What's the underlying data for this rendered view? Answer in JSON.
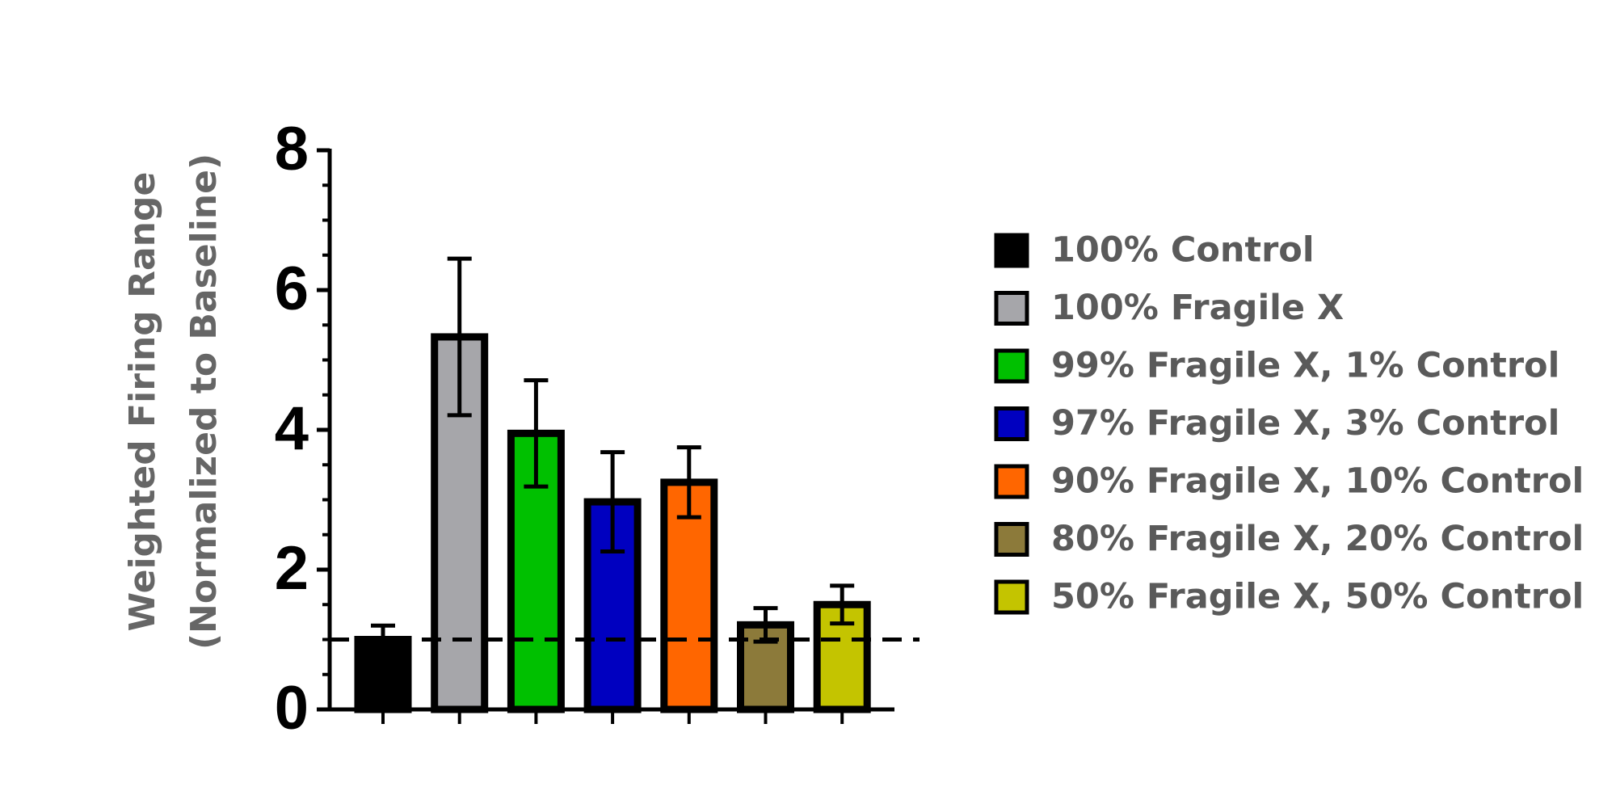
{
  "chart_data": {
    "type": "bar",
    "y_label": [
      "Weighted Firing Range",
      "(Normalized to Baseline)"
    ],
    "categories": [
      "100% Control",
      "100% Fragile X",
      "99% Fragile X, 1% Control",
      "97% Fragile X, 3% Control",
      "90% Fragile X, 10% Control",
      "80% Fragile X, 20% Control",
      "50% Fragile X, 50% Control"
    ],
    "colors": [
      "#000000",
      "#a6a6aa",
      "#00c000",
      "#0000c0",
      "#ff6600",
      "#8c7a3a",
      "#c4c400"
    ],
    "values": [
      1.0,
      5.33,
      3.95,
      2.97,
      3.25,
      1.21,
      1.5
    ],
    "errors": [
      0.2,
      1.12,
      0.76,
      0.71,
      0.5,
      0.24,
      0.27
    ],
    "ylim": [
      0,
      8
    ],
    "yticks": [
      0,
      2,
      4,
      6,
      8
    ],
    "reference_line": 1,
    "legend": "right"
  }
}
